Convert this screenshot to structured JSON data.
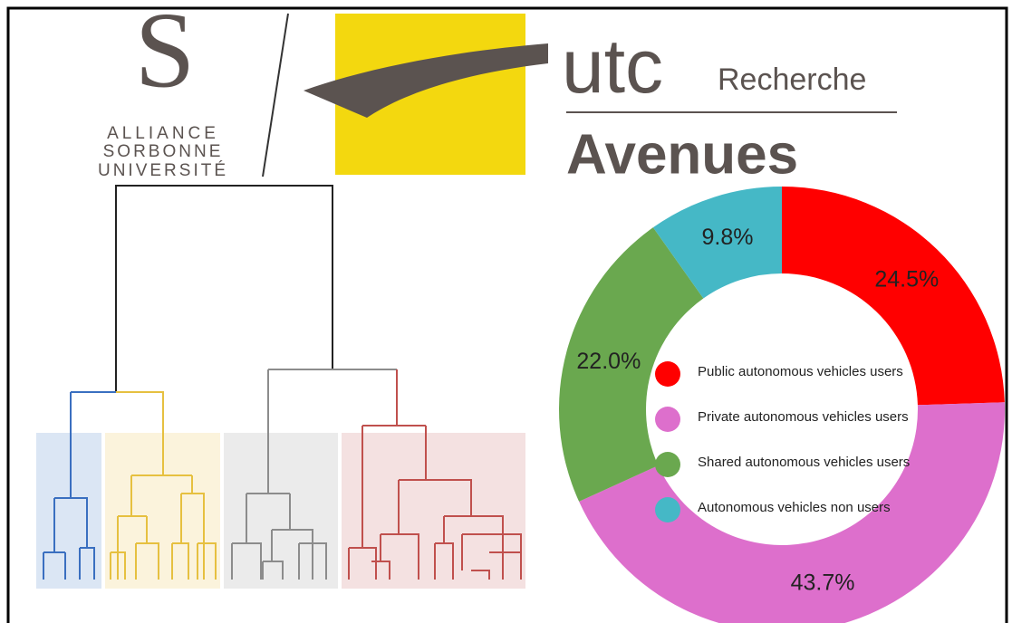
{
  "logos": {
    "alliance": [
      "ALLIANCE",
      "SORBONNE",
      "UNIVERSITÉ"
    ],
    "utc": "utc",
    "recherche": "Recherche",
    "avenues": "Avenues"
  },
  "chart_data": {
    "type": "donut",
    "categories": [
      "Public autonomous vehicles users",
      "Private autonomous vehicles users",
      "Shared autonomous vehicles users",
      "Autonomous vehicles non users"
    ],
    "values": [
      24.5,
      43.7,
      22.0,
      9.8
    ],
    "value_labels": [
      "24.5%",
      "43.7%",
      "22.0%",
      "9.8%"
    ],
    "colors": [
      "#ff0000",
      "#dd6fcc",
      "#6aa84f",
      "#45b8c6"
    ]
  }
}
